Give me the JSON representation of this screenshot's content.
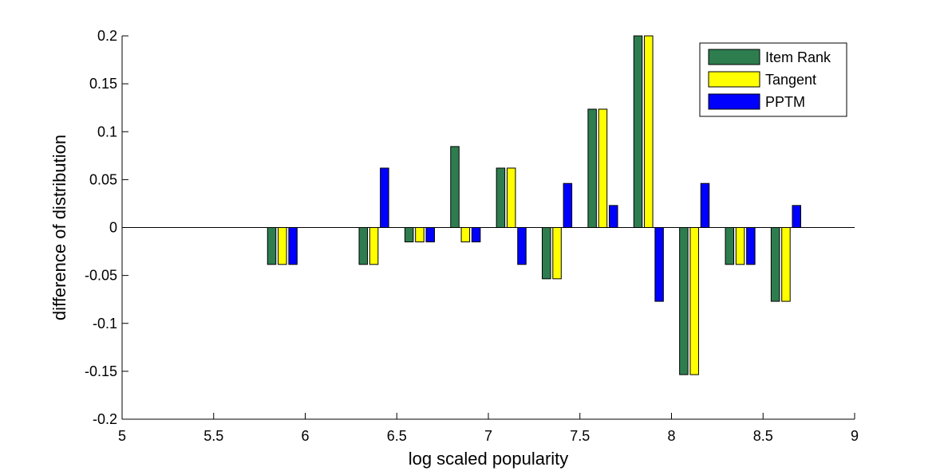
{
  "chart_data": {
    "type": "bar",
    "x": [
      5.875,
      6.375,
      6.625,
      6.875,
      7.125,
      7.375,
      7.625,
      7.875,
      8.125,
      8.375,
      8.625
    ],
    "series": [
      {
        "name": "Item Rank",
        "color": "#2e7d4f",
        "values": [
          -0.0385,
          -0.0385,
          -0.015,
          0.0845,
          0.062,
          -0.0535,
          0.1235,
          0.2,
          -0.1535,
          -0.0385,
          -0.077
        ]
      },
      {
        "name": "Tangent",
        "color": "#ffff00",
        "values": [
          -0.0385,
          -0.0385,
          -0.015,
          -0.015,
          0.062,
          -0.0535,
          0.1235,
          0.2,
          -0.1535,
          -0.0385,
          -0.077
        ]
      },
      {
        "name": "PPTM",
        "color": "#0000ff",
        "values": [
          -0.0385,
          0.062,
          -0.015,
          -0.015,
          -0.0385,
          0.046,
          0.023,
          -0.077,
          0.046,
          -0.0385,
          0.023
        ]
      }
    ],
    "xlabel": "log scaled popularity",
    "ylabel": "difference of distribution",
    "xlim": [
      5,
      9
    ],
    "ylim": [
      -0.2,
      0.2
    ],
    "xticks": [
      "5",
      "5.5",
      "6",
      "6.5",
      "7",
      "7.5",
      "8",
      "8.5",
      "9"
    ],
    "yticks": [
      "-0.2",
      "-0.15",
      "-0.1",
      "-0.05",
      "0",
      "0.05",
      "0.1",
      "0.15",
      "0.2"
    ],
    "grid": false,
    "legend_position": "top-right"
  }
}
